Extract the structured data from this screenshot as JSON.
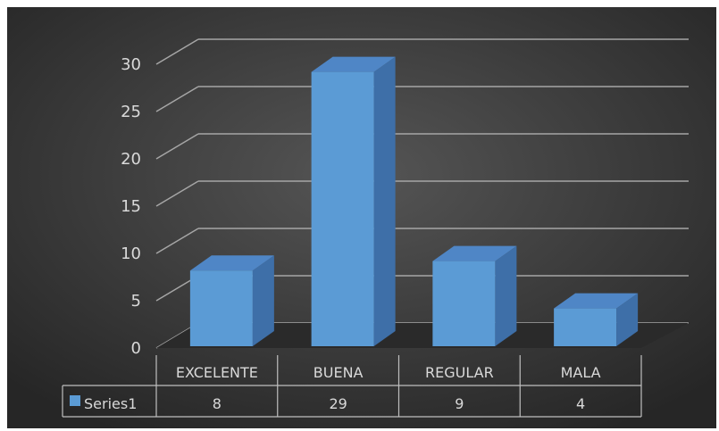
{
  "chart_data": {
    "type": "bar",
    "style": "3d-column-with-data-table",
    "categories": [
      "EXCELENTE",
      "BUENA",
      "REGULAR",
      "MALA"
    ],
    "series": [
      {
        "name": "Series1",
        "values": [
          8,
          29,
          9,
          4
        ]
      }
    ],
    "ylim": [
      0,
      30
    ],
    "yticks": [
      "0",
      "5",
      "10",
      "15",
      "20",
      "25",
      "30"
    ],
    "title": "",
    "xlabel": "",
    "ylabel": "",
    "grid": true,
    "data_table": true,
    "colors": {
      "background": "#3f3f3f",
      "bar_front": "#5b9bd5",
      "bar_side": "#3e6fa8",
      "bar_top": "#4f86c6",
      "gridline": "#a6a6a6",
      "text": "#d9d9d9"
    }
  }
}
